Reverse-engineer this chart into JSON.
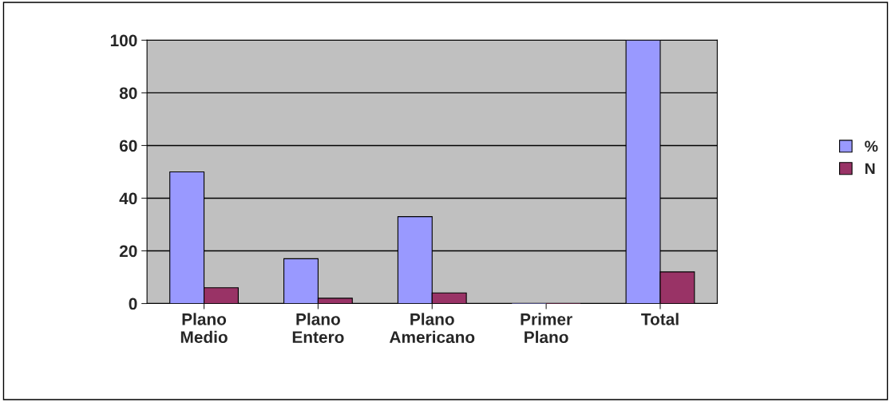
{
  "chart_data": {
    "type": "bar",
    "categories": [
      "Plano Medio",
      "Plano Entero",
      "Plano Americano",
      "Primer Plano",
      "Total"
    ],
    "series": [
      {
        "name": "%",
        "color": "#9999ff",
        "values": [
          50,
          17,
          33,
          0,
          100
        ]
      },
      {
        "name": "N",
        "color": "#993366",
        "values": [
          6,
          2,
          4,
          0,
          12
        ]
      }
    ],
    "ylim": [
      0,
      100
    ],
    "yticks": [
      0,
      20,
      40,
      60,
      80,
      100
    ],
    "grid": "y",
    "legend": "right"
  }
}
